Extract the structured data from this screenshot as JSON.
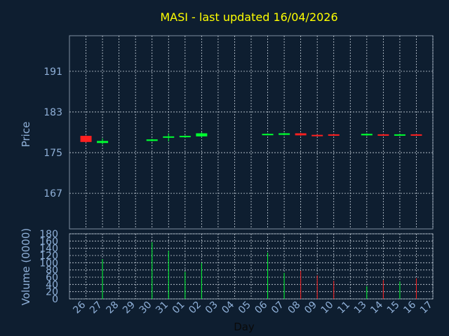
{
  "chart_data": {
    "type": "candlestick",
    "title": "MASI - last updated 16/04/2026",
    "price_panel": {
      "ylabel": "Price",
      "ylim": [
        160,
        198
      ],
      "yticks": [
        167,
        175,
        183,
        191
      ],
      "grid": true
    },
    "volume_panel": {
      "ylabel": "Volume (0000)",
      "ylim": [
        0,
        180
      ],
      "yticks": [
        0,
        20,
        40,
        60,
        80,
        100,
        120,
        140,
        160,
        180
      ],
      "grid": true
    },
    "xlabel": "Day",
    "days": [
      "26",
      "27",
      "28",
      "29",
      "30",
      "31",
      "01",
      "02",
      "03",
      "04",
      "05",
      "06",
      "07",
      "08",
      "09",
      "10",
      "11",
      "13",
      "14",
      "15",
      "16",
      "17"
    ],
    "candles": [
      {
        "day": "26",
        "open": 178.3,
        "close": 177.1,
        "high": 178.4,
        "low": 177.0,
        "volume": null
      },
      {
        "day": "27",
        "open": 176.9,
        "close": 177.3,
        "high": 177.8,
        "low": 176.6,
        "volume": 110
      },
      {
        "day": "30",
        "open": 177.3,
        "close": 177.6,
        "high": 177.7,
        "low": 177.2,
        "volume": 157
      },
      {
        "day": "31",
        "open": 178.0,
        "close": 178.2,
        "high": 178.8,
        "low": 177.2,
        "volume": 133
      },
      {
        "day": "01",
        "open": 178.1,
        "close": 178.3,
        "high": 178.4,
        "low": 177.9,
        "volume": 75
      },
      {
        "day": "02",
        "open": 178.2,
        "close": 178.8,
        "high": 179.0,
        "low": 178.0,
        "volume": 100
      },
      {
        "day": "06",
        "open": 178.6,
        "close": 178.7,
        "high": 178.8,
        "low": 178.4,
        "volume": 128
      },
      {
        "day": "07",
        "open": 178.5,
        "close": 178.8,
        "high": 178.9,
        "low": 178.4,
        "volume": 72
      },
      {
        "day": "08",
        "open": 178.8,
        "close": 178.4,
        "high": 178.9,
        "low": 178.3,
        "volume": 78
      },
      {
        "day": "09",
        "open": 178.5,
        "close": 178.4,
        "high": 178.6,
        "low": 178.3,
        "volume": 65
      },
      {
        "day": "10",
        "open": 178.6,
        "close": 178.4,
        "high": 178.7,
        "low": 178.3,
        "volume": 50
      },
      {
        "day": "13",
        "open": 178.4,
        "close": 178.7,
        "high": 178.8,
        "low": 178.3,
        "volume": 35
      },
      {
        "day": "14",
        "open": 178.6,
        "close": 178.5,
        "high": 178.7,
        "low": 178.4,
        "volume": 52
      },
      {
        "day": "15",
        "open": 178.4,
        "close": 178.6,
        "high": 178.7,
        "low": 178.3,
        "volume": 48
      },
      {
        "day": "16",
        "open": 178.6,
        "close": 178.5,
        "high": 178.7,
        "low": 178.4,
        "volume": 57
      }
    ],
    "colors": {
      "up": "#00ff30",
      "down": "#ff2020",
      "background": "#0e1e30",
      "title": "#ffff00",
      "axis_text": "#8fb0d8",
      "grid": "#c8d2dc"
    }
  }
}
